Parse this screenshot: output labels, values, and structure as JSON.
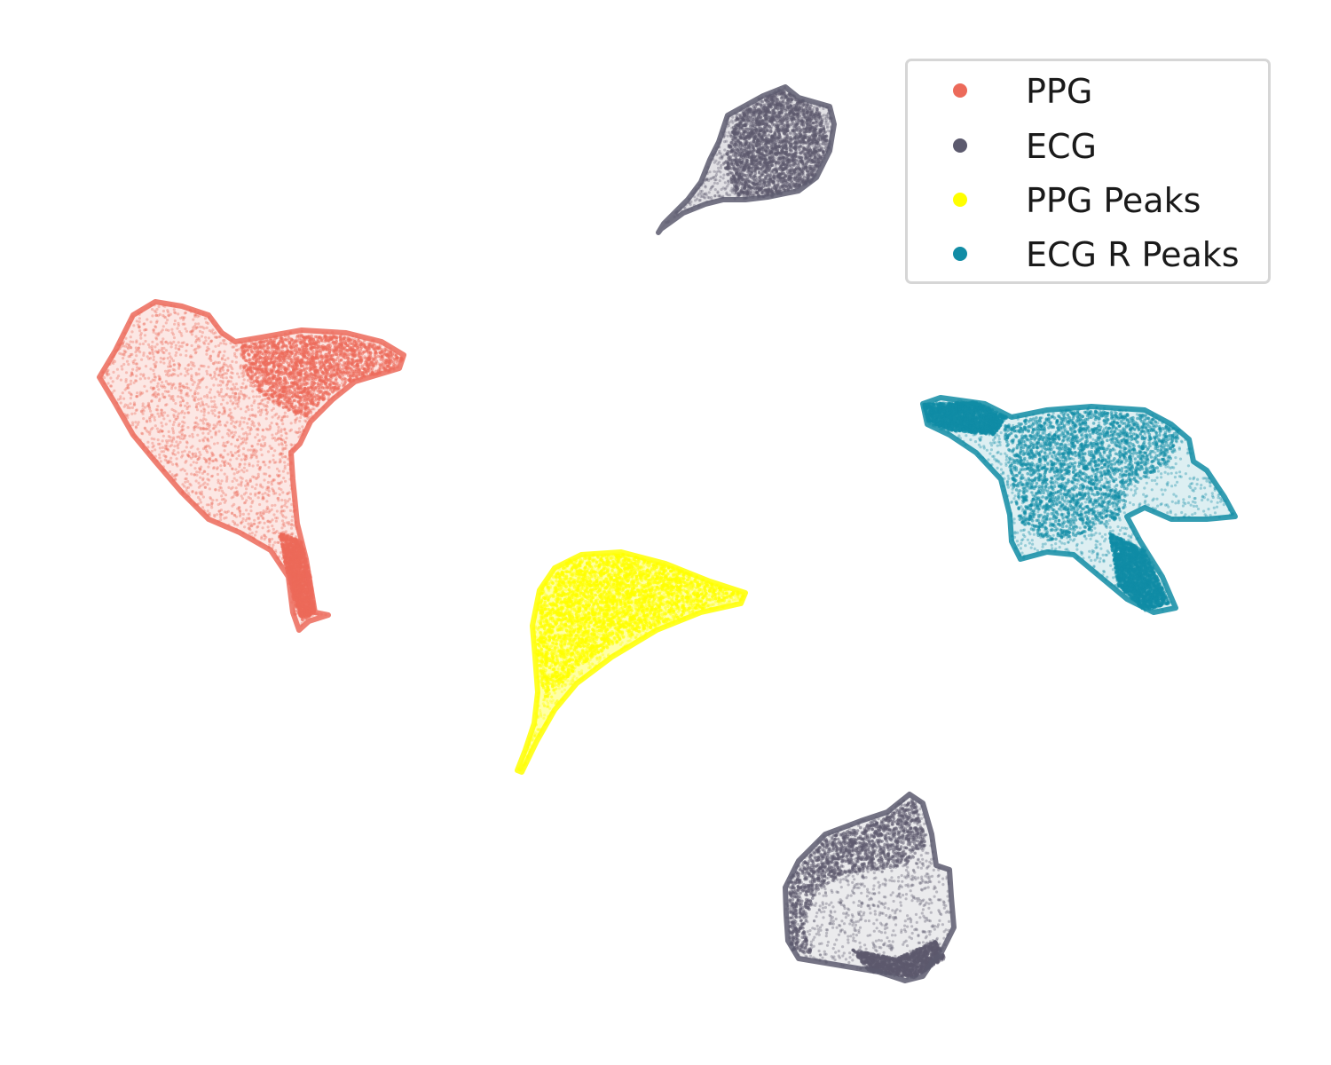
{
  "chart_data": {
    "type": "scatter",
    "title": "",
    "xlabel": "",
    "ylabel": "",
    "axes_visible": false,
    "grid": false,
    "legend_placement": "top-right",
    "legend": [
      {
        "name": "PPG",
        "color": "#ec6a5a"
      },
      {
        "name": "ECG",
        "color": "#5c5a6e"
      },
      {
        "name": "PPG Peaks",
        "color": "#ffff00"
      },
      {
        "name": "ECG R Peaks",
        "color": "#118ca5"
      }
    ],
    "series": [
      {
        "name": "PPG",
        "color": "#ec6a5a",
        "clusters": 1
      },
      {
        "name": "ECG",
        "color": "#5c5a6e",
        "clusters": 2
      },
      {
        "name": "PPG Peaks",
        "color": "#ffff00",
        "clusters": 1
      },
      {
        "name": "ECG R Peaks",
        "color": "#118ca5",
        "clusters": 1
      }
    ]
  }
}
